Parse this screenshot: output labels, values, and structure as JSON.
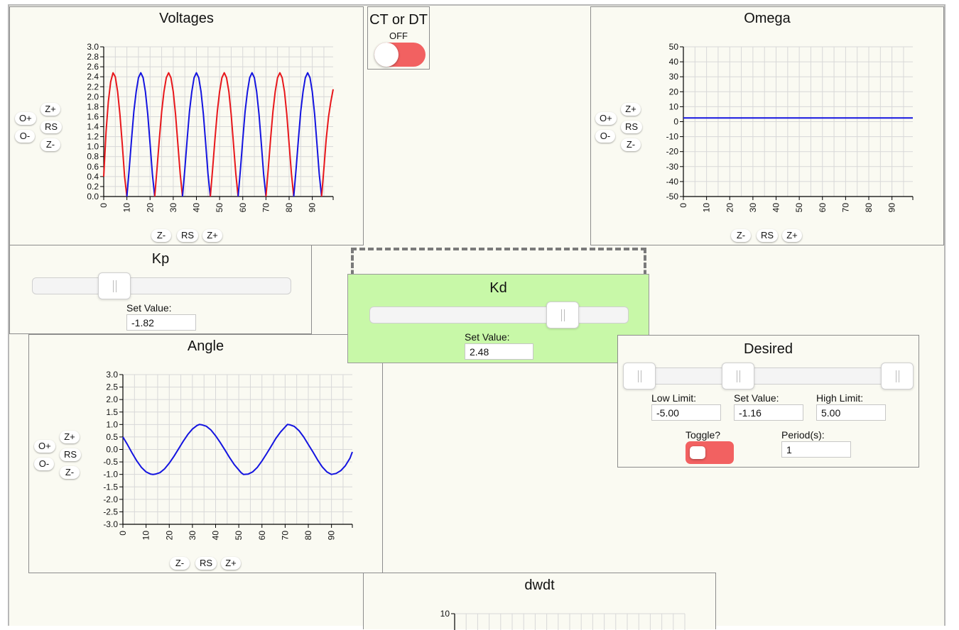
{
  "voltages": {
    "title": "Voltages",
    "y_ticks": [
      "3.0",
      "2.8",
      "2.6",
      "2.4",
      "2.2",
      "2.0",
      "1.8",
      "1.6",
      "1.4",
      "1.2",
      "1.0",
      "0.8",
      "0.6",
      "0.4",
      "0.2",
      "0.0"
    ],
    "x_ticks": [
      "0",
      "10",
      "20",
      "30",
      "40",
      "50",
      "60",
      "70",
      "80",
      "90"
    ],
    "zoom": {
      "o_plus": "O+",
      "o_minus": "O-",
      "z_plus": "Z+",
      "rs": "RS",
      "z_minus": "Z-"
    },
    "colors": {
      "series_red": "#e8171b",
      "series_blue": "#1414e0"
    }
  },
  "ct_dt": {
    "title": "CT or DT",
    "state": "OFF"
  },
  "omega": {
    "title": "Omega",
    "y_ticks": [
      "50",
      "40",
      "30",
      "20",
      "10",
      "0",
      "-10",
      "-20",
      "-30",
      "-40",
      "-50"
    ],
    "x_ticks": [
      "0",
      "10",
      "20",
      "30",
      "40",
      "50",
      "60",
      "70",
      "80",
      "90"
    ],
    "zoom": {
      "o_plus": "O+",
      "o_minus": "O-",
      "z_plus": "Z+",
      "rs": "RS",
      "z_minus": "Z-"
    }
  },
  "kp": {
    "title": "Kp",
    "set_value_label": "Set Value:",
    "value": "-1.82"
  },
  "kd": {
    "title": "Kd",
    "set_value_label": "Set Value:",
    "value": "2.48",
    "highlight_color": "#c8f8a8"
  },
  "desired": {
    "title": "Desired",
    "low_limit_label": "Low Limit:",
    "low_limit": "-5.00",
    "set_value_label": "Set Value:",
    "set_value": "-1.16",
    "high_limit_label": "High Limit:",
    "high_limit": "5.00",
    "toggle_label": "Toggle?",
    "period_label": "Period(s):",
    "period": "1"
  },
  "angle": {
    "title": "Angle",
    "y_ticks": [
      "3.0",
      "2.5",
      "2.0",
      "1.5",
      "1.0",
      "0.5",
      "0.0",
      "-0.5",
      "-1.0",
      "-1.5",
      "-2.0",
      "-2.5",
      "-3.0"
    ],
    "x_ticks": [
      "0",
      "10",
      "20",
      "30",
      "40",
      "50",
      "60",
      "70",
      "80",
      "90"
    ],
    "zoom": {
      "o_plus": "O+",
      "o_minus": "O-",
      "z_plus": "Z+",
      "rs": "RS",
      "z_minus": "Z-"
    }
  },
  "dwdt": {
    "title": "dwdt",
    "y_ticks": [
      "10"
    ]
  },
  "chart_data": [
    {
      "type": "line",
      "title": "Voltages",
      "ylim": [
        0,
        3
      ],
      "xlim": [
        0,
        99
      ],
      "grid": true,
      "series": [
        {
          "color": "#e8171b",
          "points": [
            [
              0,
              0.4
            ],
            [
              1,
              1.3
            ],
            [
              2,
              1.9
            ],
            [
              3,
              2.3
            ],
            [
              4,
              2.48
            ],
            [
              5,
              2.4
            ],
            [
              6,
              2.1
            ],
            [
              7,
              1.65
            ],
            [
              8,
              1.05
            ],
            [
              9,
              0.4
            ],
            [
              10,
              0.0
            ]
          ]
        },
        {
          "color": "#1414e0",
          "points": [
            [
              10,
              0.0
            ],
            [
              11,
              0.55
            ],
            [
              12,
              1.15
            ],
            [
              13,
              1.7
            ],
            [
              14,
              2.1
            ],
            [
              15,
              2.38
            ],
            [
              16,
              2.48
            ],
            [
              17,
              2.38
            ],
            [
              18,
              2.1
            ],
            [
              19,
              1.65
            ],
            [
              20,
              1.05
            ],
            [
              21,
              0.45
            ],
            [
              22,
              0.0
            ]
          ]
        },
        {
          "color": "#e8171b",
          "points": [
            [
              22,
              0.0
            ],
            [
              23,
              0.55
            ],
            [
              24,
              1.15
            ],
            [
              25,
              1.7
            ],
            [
              26,
              2.1
            ],
            [
              27,
              2.38
            ],
            [
              28,
              2.48
            ],
            [
              29,
              2.38
            ],
            [
              30,
              2.1
            ],
            [
              31,
              1.65
            ],
            [
              32,
              1.05
            ],
            [
              33,
              0.45
            ],
            [
              34,
              0.0
            ]
          ]
        },
        {
          "color": "#1414e0",
          "points": [
            [
              34,
              0.0
            ],
            [
              35,
              0.55
            ],
            [
              36,
              1.15
            ],
            [
              37,
              1.7
            ],
            [
              38,
              2.1
            ],
            [
              39,
              2.38
            ],
            [
              40,
              2.48
            ],
            [
              41,
              2.38
            ],
            [
              42,
              2.1
            ],
            [
              43,
              1.65
            ],
            [
              44,
              1.05
            ],
            [
              45,
              0.45
            ],
            [
              46,
              0.0
            ]
          ]
        },
        {
          "color": "#e8171b",
          "points": [
            [
              46,
              0.0
            ],
            [
              47,
              0.55
            ],
            [
              48,
              1.15
            ],
            [
              49,
              1.7
            ],
            [
              50,
              2.1
            ],
            [
              51,
              2.38
            ],
            [
              52,
              2.48
            ],
            [
              53,
              2.38
            ],
            [
              54,
              2.1
            ],
            [
              55,
              1.65
            ],
            [
              56,
              1.05
            ],
            [
              57,
              0.45
            ],
            [
              58,
              0.0
            ]
          ]
        },
        {
          "color": "#1414e0",
          "points": [
            [
              58,
              0.0
            ],
            [
              59,
              0.55
            ],
            [
              60,
              1.15
            ],
            [
              61,
              1.7
            ],
            [
              62,
              2.1
            ],
            [
              63,
              2.38
            ],
            [
              64,
              2.48
            ],
            [
              65,
              2.38
            ],
            [
              66,
              2.1
            ],
            [
              67,
              1.65
            ],
            [
              68,
              1.05
            ],
            [
              69,
              0.45
            ],
            [
              70,
              0.0
            ]
          ]
        },
        {
          "color": "#e8171b",
          "points": [
            [
              70,
              0.0
            ],
            [
              71,
              0.55
            ],
            [
              72,
              1.15
            ],
            [
              73,
              1.7
            ],
            [
              74,
              2.1
            ],
            [
              75,
              2.38
            ],
            [
              76,
              2.48
            ],
            [
              77,
              2.38
            ],
            [
              78,
              2.1
            ],
            [
              79,
              1.65
            ],
            [
              80,
              1.05
            ],
            [
              81,
              0.45
            ],
            [
              82,
              0.0
            ]
          ]
        },
        {
          "color": "#1414e0",
          "points": [
            [
              82,
              0.0
            ],
            [
              83,
              0.55
            ],
            [
              84,
              1.15
            ],
            [
              85,
              1.7
            ],
            [
              86,
              2.1
            ],
            [
              87,
              2.38
            ],
            [
              88,
              2.48
            ],
            [
              89,
              2.38
            ],
            [
              90,
              2.1
            ],
            [
              91,
              1.65
            ],
            [
              92,
              1.05
            ],
            [
              93,
              0.45
            ],
            [
              94,
              0.0
            ]
          ]
        },
        {
          "color": "#e8171b",
          "points": [
            [
              94,
              0.0
            ],
            [
              95,
              0.55
            ],
            [
              96,
              1.15
            ],
            [
              97,
              1.6
            ],
            [
              98,
              1.9
            ],
            [
              99,
              2.15
            ]
          ]
        }
      ]
    },
    {
      "type": "line",
      "title": "Omega",
      "ylim": [
        -50,
        50
      ],
      "xlim": [
        0,
        99
      ],
      "grid": true,
      "series": [
        {
          "color": "#1414e0",
          "points": [
            [
              0,
              2.5
            ],
            [
              99,
              2.5
            ]
          ]
        }
      ]
    },
    {
      "type": "line",
      "title": "Angle",
      "ylim": [
        -3,
        3
      ],
      "xlim": [
        0,
        99
      ],
      "grid": true,
      "series": [
        {
          "color": "#1414e0",
          "points": [
            [
              0,
              0.5
            ],
            [
              2,
              0.19
            ],
            [
              4,
              -0.15
            ],
            [
              6,
              -0.46
            ],
            [
              8,
              -0.72
            ],
            [
              10,
              -0.9
            ],
            [
              12,
              -0.99
            ],
            [
              13,
              -1.0
            ],
            [
              14,
              -0.99
            ],
            [
              16,
              -0.93
            ],
            [
              18,
              -0.78
            ],
            [
              20,
              -0.55
            ],
            [
              22,
              -0.28
            ],
            [
              24,
              0.02
            ],
            [
              26,
              0.32
            ],
            [
              28,
              0.6
            ],
            [
              30,
              0.82
            ],
            [
              32,
              0.96
            ],
            [
              33,
              1.0
            ],
            [
              34,
              0.99
            ],
            [
              36,
              0.93
            ],
            [
              38,
              0.78
            ],
            [
              40,
              0.55
            ],
            [
              42,
              0.28
            ],
            [
              44,
              -0.02
            ],
            [
              46,
              -0.32
            ],
            [
              48,
              -0.6
            ],
            [
              50,
              -0.82
            ],
            [
              51,
              -0.93
            ],
            [
              52,
              -1.0
            ],
            [
              54,
              -0.99
            ],
            [
              56,
              -0.9
            ],
            [
              58,
              -0.72
            ],
            [
              60,
              -0.46
            ],
            [
              62,
              -0.17
            ],
            [
              64,
              0.13
            ],
            [
              66,
              0.44
            ],
            [
              68,
              0.7
            ],
            [
              70,
              0.9
            ],
            [
              71,
              1.0
            ],
            [
              72,
              0.99
            ],
            [
              74,
              0.92
            ],
            [
              76,
              0.75
            ],
            [
              78,
              0.5
            ],
            [
              80,
              0.2
            ],
            [
              82,
              -0.1
            ],
            [
              84,
              -0.42
            ],
            [
              86,
              -0.7
            ],
            [
              88,
              -0.9
            ],
            [
              90,
              -1.0
            ],
            [
              92,
              -0.96
            ],
            [
              94,
              -0.85
            ],
            [
              96,
              -0.65
            ],
            [
              98,
              -0.35
            ],
            [
              99,
              -0.1
            ]
          ]
        }
      ]
    }
  ]
}
